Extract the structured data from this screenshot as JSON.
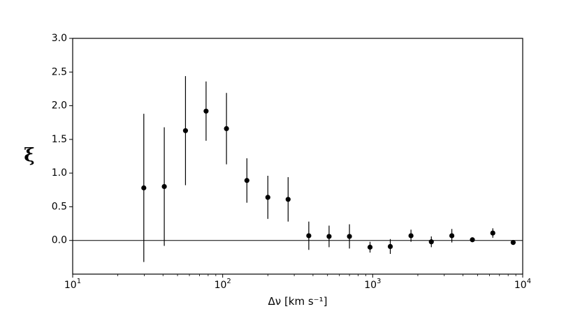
{
  "chart_data": {
    "type": "scatter",
    "title": "",
    "xlabel": "Δν [km s⁻¹]",
    "ylabel": "ξ",
    "xscale": "log",
    "xlim": [
      10,
      10000
    ],
    "ylim": [
      -0.5,
      3.0
    ],
    "xticks": [
      {
        "base": "10",
        "exp": "1"
      },
      {
        "base": "10",
        "exp": "2"
      },
      {
        "base": "10",
        "exp": "3"
      },
      {
        "base": "10",
        "exp": "4"
      }
    ],
    "yticks": [
      "0.0",
      "0.5",
      "1.0",
      "1.5",
      "2.0",
      "2.5",
      "3.0"
    ],
    "reference_line_y": 0,
    "grid": false,
    "legend": "none",
    "series": [
      {
        "x": [
          29.8,
          40.8,
          56.5,
          77.5,
          106,
          145,
          200,
          273,
          375,
          512,
          700,
          960,
          1310,
          1800,
          2460,
          3370,
          4620,
          6320,
          8640
        ],
        "y": [
          0.78,
          0.8,
          1.63,
          1.92,
          1.66,
          0.89,
          0.64,
          0.61,
          0.07,
          0.06,
          0.06,
          -0.1,
          -0.09,
          0.07,
          -0.02,
          0.07,
          0.01,
          0.11,
          -0.03
        ],
        "yerr": [
          1.1,
          0.88,
          0.81,
          0.44,
          0.53,
          0.33,
          0.32,
          0.33,
          0.21,
          0.16,
          0.18,
          0.08,
          0.11,
          0.09,
          0.08,
          0.1,
          0.03,
          0.07,
          0.02
        ]
      }
    ],
    "colors": {
      "marker": "#000000",
      "axes": "#000000",
      "background": "#ffffff"
    }
  }
}
